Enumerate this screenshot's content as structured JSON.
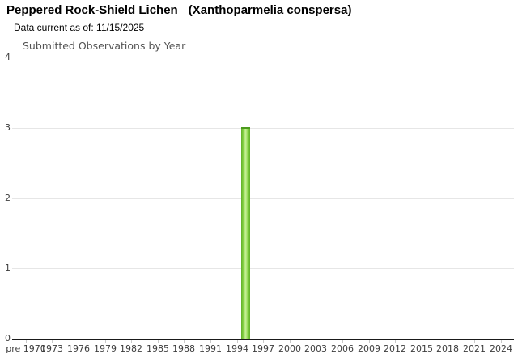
{
  "header": {
    "common_name": "Peppered Rock-Shield Lichen",
    "scientific_name": "(Xanthoparmelia conspersa)",
    "data_current": "Data current as of: 11/15/2025"
  },
  "chart_data": {
    "type": "bar",
    "title": "Submitted Observations by Year",
    "xlabel": "",
    "ylabel": "",
    "ylim": [
      0,
      4
    ],
    "y_ticks": [
      0,
      1,
      2,
      3,
      4
    ],
    "x_tick_labels": [
      "pre 1970",
      "1973",
      "1976",
      "1979",
      "1982",
      "1985",
      "1988",
      "1991",
      "1994",
      "1997",
      "2000",
      "2003",
      "2006",
      "2009",
      "2012",
      "2015",
      "2018",
      "2021",
      "2024"
    ],
    "x_axis_note": "categories are single years from pre 1970 through 2025; labels shown every 3 years",
    "grid": "horizontal gridlines only",
    "legend": "none",
    "series": [
      {
        "name": "Submitted Observations",
        "points": [
          {
            "x": 1995,
            "y": 3
          }
        ],
        "all_other_years_value": 0
      }
    ],
    "colors": {
      "bar_edge": "#5FAE27",
      "bar_mid": "#8FD94E",
      "bar_center": "#C9EF9B",
      "bar_cap": "#4C9A1D",
      "gridline": "#E6E6E6",
      "axis_line": "#1A1A1A",
      "tick_mark": "#C9C9C9",
      "axis_label_text": "#3C3C3C",
      "subtitle_text": "#545454"
    }
  }
}
